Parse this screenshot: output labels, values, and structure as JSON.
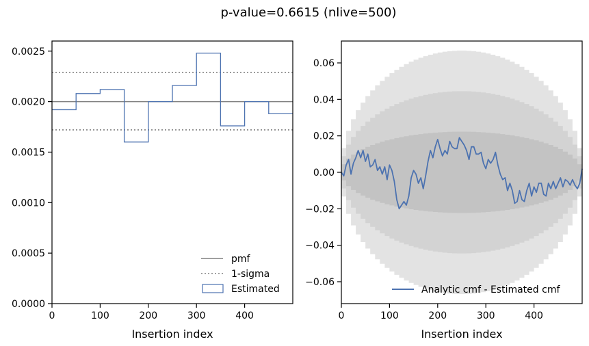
{
  "figure": {
    "suptitle": "p-value=0.6615 (nlive=500)"
  },
  "chart_data": [
    {
      "type": "step",
      "xlabel": "Insertion index",
      "ylabel": "",
      "xlim": [
        0,
        500
      ],
      "ylim": [
        0,
        0.0026
      ],
      "xticks": [
        "0",
        "100",
        "200",
        "300",
        "400"
      ],
      "yticks": [
        "0.0000",
        "0.0005",
        "0.0010",
        "0.0015",
        "0.0020",
        "0.0025"
      ],
      "pmf": 0.002,
      "sigma_band": [
        0.00172,
        0.00229
      ],
      "bin_edges": [
        0,
        50,
        100,
        150,
        200,
        250,
        300,
        350,
        400,
        450,
        500
      ],
      "estimated": [
        0.00192,
        0.00208,
        0.00212,
        0.0016,
        0.002,
        0.00216,
        0.00248,
        0.00176,
        0.002,
        0.00188
      ],
      "legend": {
        "position": "lower-right",
        "entries": [
          "pmf",
          "1-sigma",
          "Estimated"
        ]
      },
      "colors": {
        "pmf": "#808080",
        "sigma": "#808080",
        "estimated": "#4c72b0"
      }
    },
    {
      "type": "line",
      "xlabel": "Insertion index",
      "ylabel": "",
      "xlim": [
        0,
        500
      ],
      "ylim": [
        -0.072,
        0.072
      ],
      "xticks": [
        "0",
        "100",
        "200",
        "300",
        "400"
      ],
      "yticks": [
        "0.06",
        "0.04",
        "0.02",
        "0.00",
        "−0.02",
        "−0.04",
        "−0.06"
      ],
      "bands": [
        {
          "level": "3-sigma",
          "half_width_max": 0.0668,
          "color": "#e3e3e3"
        },
        {
          "level": "2-sigma",
          "half_width_max": 0.0445,
          "color": "#d3d3d3"
        },
        {
          "level": "1-sigma",
          "half_width_max": 0.0223,
          "color": "#c3c3c3"
        }
      ],
      "series": [
        {
          "name": "Analytic cmf - Estimated cmf",
          "color": "#4c72b0",
          "x": [
            0,
            5,
            10,
            15,
            20,
            25,
            30,
            35,
            40,
            45,
            50,
            55,
            60,
            65,
            70,
            75,
            80,
            85,
            90,
            95,
            100,
            105,
            110,
            115,
            120,
            125,
            130,
            135,
            140,
            145,
            150,
            155,
            160,
            165,
            170,
            175,
            180,
            185,
            190,
            195,
            200,
            205,
            210,
            215,
            220,
            225,
            230,
            235,
            240,
            245,
            250,
            255,
            260,
            265,
            270,
            275,
            280,
            285,
            290,
            295,
            300,
            305,
            310,
            315,
            320,
            325,
            330,
            335,
            340,
            345,
            350,
            355,
            360,
            365,
            370,
            375,
            380,
            385,
            390,
            395,
            400,
            405,
            410,
            415,
            420,
            425,
            430,
            435,
            440,
            445,
            450,
            455,
            460,
            465,
            470,
            475,
            480,
            485,
            490,
            495,
            500
          ],
          "y": [
            0.0,
            -0.002,
            0.004,
            0.007,
            -0.001,
            0.005,
            0.008,
            0.012,
            0.008,
            0.012,
            0.006,
            0.01,
            0.003,
            0.004,
            0.007,
            0.001,
            0.003,
            -0.001,
            0.003,
            -0.004,
            0.004,
            0.001,
            -0.005,
            -0.015,
            -0.02,
            -0.018,
            -0.016,
            -0.018,
            -0.013,
            -0.003,
            0.001,
            -0.001,
            -0.006,
            -0.003,
            -0.009,
            -0.002,
            0.006,
            0.012,
            0.008,
            0.014,
            0.018,
            0.013,
            0.009,
            0.012,
            0.01,
            0.017,
            0.014,
            0.013,
            0.013,
            0.019,
            0.017,
            0.015,
            0.012,
            0.007,
            0.014,
            0.014,
            0.01,
            0.01,
            0.011,
            0.005,
            0.002,
            0.007,
            0.005,
            0.007,
            0.011,
            0.004,
            -0.001,
            -0.004,
            -0.003,
            -0.01,
            -0.006,
            -0.01,
            -0.017,
            -0.016,
            -0.01,
            -0.015,
            -0.016,
            -0.01,
            -0.006,
            -0.013,
            -0.008,
            -0.011,
            -0.006,
            -0.006,
            -0.012,
            -0.013,
            -0.006,
            -0.009,
            -0.005,
            -0.009,
            -0.006,
            -0.003,
            -0.008,
            -0.004,
            -0.005,
            -0.007,
            -0.004,
            -0.007,
            -0.009,
            -0.006,
            0.002
          ]
        }
      ],
      "legend": {
        "position": "lower-right",
        "entries": [
          "Analytic cmf - Estimated cmf"
        ]
      }
    }
  ]
}
